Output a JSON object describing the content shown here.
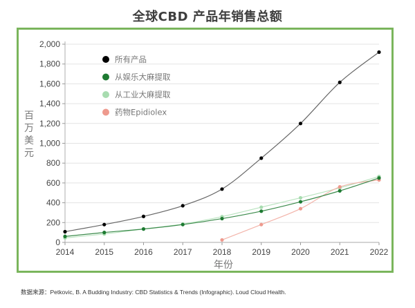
{
  "chart_data": {
    "type": "line",
    "title": "全球CBD 产品年销售总额",
    "xlabel": "年份",
    "ylabel": "百万美元",
    "x": [
      2014,
      2015,
      2016,
      2017,
      2018,
      2019,
      2020,
      2021,
      2022
    ],
    "x_tick_labels": [
      "2014",
      "2015",
      "2016",
      "2017",
      "2018",
      "2019",
      "2020",
      "2021",
      "2022"
    ],
    "ylim": [
      0,
      2000
    ],
    "y_ticks": [
      0,
      200,
      400,
      600,
      800,
      1000,
      1200,
      1400,
      1600,
      1800,
      2000
    ],
    "y_tick_labels": [
      "0",
      "200",
      "400",
      "600",
      "800",
      "1,000",
      "1,200",
      "1,400",
      "1,600",
      "1,800",
      "2,000"
    ],
    "grid": "horizontal",
    "legend_position": "top-left",
    "series": [
      {
        "name": "所有产品",
        "color": "#000000",
        "line_color": "#666666",
        "values": [
          108,
          180,
          262,
          370,
          538,
          850,
          1200,
          1615,
          1920
        ]
      },
      {
        "name": "从娱乐大麻提取",
        "color": "#1e7a32",
        "line_color": "#3a8a4a",
        "values": [
          60,
          100,
          135,
          180,
          240,
          315,
          410,
          520,
          650
        ]
      },
      {
        "name": "从工业大麻提取",
        "color": "#a8dcb0",
        "line_color": "#b9e3bf",
        "values": [
          45,
          85,
          135,
          185,
          260,
          355,
          450,
          550,
          665
        ]
      },
      {
        "name": "药物Epidiolex",
        "color": "#ee9a8e",
        "line_color": "#f3b4aa",
        "values": [
          null,
          null,
          null,
          null,
          25,
          180,
          340,
          560,
          630
        ]
      }
    ]
  },
  "source_note": "数据来源：Petkovic, B. A Budding Industry: CBD Statistics & Trends (Infographic). Loud Cloud Health."
}
